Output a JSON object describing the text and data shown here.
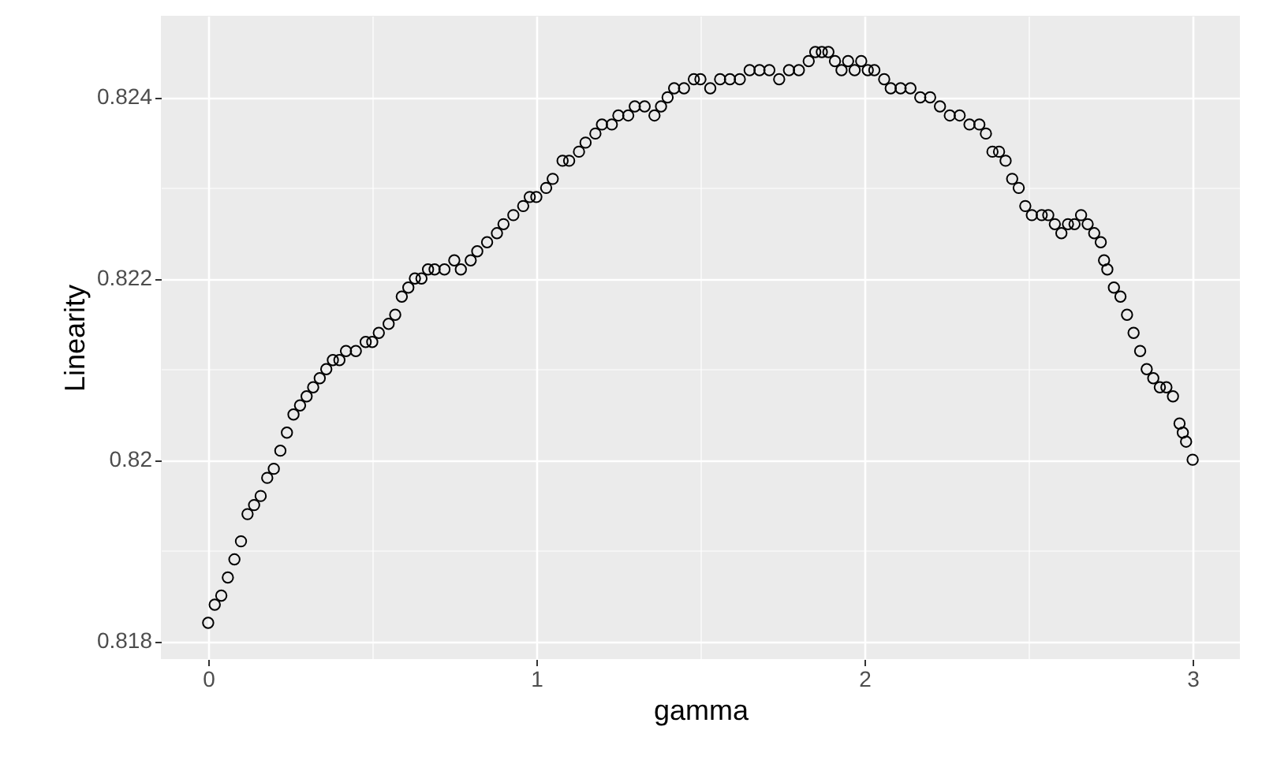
{
  "chart_data": {
    "type": "scatter",
    "xlabel": "gamma",
    "ylabel": "Linearity",
    "marker": "circle",
    "grid": true,
    "x": [
      0,
      0.02,
      0.04,
      0.06,
      0.08,
      0.1,
      0.12,
      0.14,
      0.16,
      0.18,
      0.2,
      0.22,
      0.24,
      0.26,
      0.28,
      0.3,
      0.32,
      0.34,
      0.36,
      0.38,
      0.4,
      0.42,
      0.45,
      0.48,
      0.5,
      0.52,
      0.55,
      0.57,
      0.59,
      0.61,
      0.63,
      0.65,
      0.67,
      0.69,
      0.72,
      0.75,
      0.77,
      0.8,
      0.82,
      0.85,
      0.88,
      0.9,
      0.93,
      0.96,
      0.98,
      1,
      1.03,
      1.05,
      1.08,
      1.1,
      1.13,
      1.15,
      1.18,
      1.2,
      1.23,
      1.25,
      1.28,
      1.3,
      1.33,
      1.36,
      1.38,
      1.4,
      1.42,
      1.45,
      1.48,
      1.5,
      1.53,
      1.56,
      1.59,
      1.62,
      1.65,
      1.68,
      1.71,
      1.74,
      1.77,
      1.8,
      1.83,
      1.85,
      1.87,
      1.89,
      1.91,
      1.93,
      1.95,
      1.97,
      1.99,
      2.01,
      2.03,
      2.06,
      2.08,
      2.11,
      2.14,
      2.17,
      2.2,
      2.23,
      2.26,
      2.29,
      2.32,
      2.35,
      2.37,
      2.39,
      2.41,
      2.43,
      2.45,
      2.47,
      2.49,
      2.51,
      2.54,
      2.56,
      2.58,
      2.6,
      2.62,
      2.64,
      2.66,
      2.68,
      2.7,
      2.72,
      2.73,
      2.74,
      2.76,
      2.78,
      2.8,
      2.82,
      2.84,
      2.86,
      2.88,
      2.9,
      2.92,
      2.94,
      2.96,
      2.97,
      2.98,
      3
    ],
    "series": [
      {
        "color": "#000000",
        "values": [
          0.8182,
          0.8184,
          0.8185,
          0.8187,
          0.8189,
          0.8191,
          0.8194,
          0.8195,
          0.8196,
          0.8198,
          0.8199,
          0.8201,
          0.8203,
          0.8205,
          0.8206,
          0.8207,
          0.8208,
          0.8209,
          0.821,
          0.8211,
          0.8211,
          0.8212,
          0.8212,
          0.8213,
          0.8213,
          0.8214,
          0.8215,
          0.8216,
          0.8218,
          0.8219,
          0.822,
          0.822,
          0.8221,
          0.8221,
          0.8221,
          0.8222,
          0.8221,
          0.8222,
          0.8223,
          0.8224,
          0.8225,
          0.8226,
          0.8227,
          0.8228,
          0.8229,
          0.8229,
          0.823,
          0.8231,
          0.8233,
          0.8233,
          0.8234,
          0.8235,
          0.8236,
          0.8237,
          0.8237,
          0.8238,
          0.8238,
          0.8239,
          0.8239,
          0.8238,
          0.8239,
          0.824,
          0.8241,
          0.8241,
          0.8242,
          0.8242,
          0.8241,
          0.8242,
          0.8242,
          0.8242,
          0.8243,
          0.8243,
          0.8243,
          0.8242,
          0.8243,
          0.8243,
          0.8244,
          0.8245,
          0.8245,
          0.8245,
          0.8244,
          0.8243,
          0.8244,
          0.8243,
          0.8244,
          0.8243,
          0.8243,
          0.8242,
          0.8241,
          0.8241,
          0.8241,
          0.824,
          0.824,
          0.8239,
          0.8238,
          0.8238,
          0.8237,
          0.8237,
          0.8236,
          0.8234,
          0.8234,
          0.8233,
          0.8231,
          0.823,
          0.8228,
          0.8227,
          0.8227,
          0.8227,
          0.8226,
          0.8225,
          0.8226,
          0.8226,
          0.8227,
          0.8226,
          0.8225,
          0.8224,
          0.8222,
          0.8221,
          0.8219,
          0.8218,
          0.8216,
          0.8214,
          0.8212,
          0.821,
          0.8209,
          0.8208,
          0.8208,
          0.8207,
          0.8204,
          0.8203,
          0.8202,
          0.82
        ]
      }
    ],
    "xlim": [
      -0.144,
      3.144
    ],
    "xticks": [
      0,
      {
        "value": 0.5,
        "label": null
      },
      1,
      {
        "value": 1.5,
        "label": null
      },
      2,
      {
        "value": 2.5,
        "label": null
      },
      3
    ],
    "ylim": [
      0.8178,
      0.8249
    ],
    "yticks": [
      0.818,
      {
        "value": 0.819,
        "label": null
      },
      0.82,
      {
        "value": 0.821,
        "label": null
      },
      0.822,
      {
        "value": 0.823,
        "label": null
      },
      0.824
    ]
  }
}
